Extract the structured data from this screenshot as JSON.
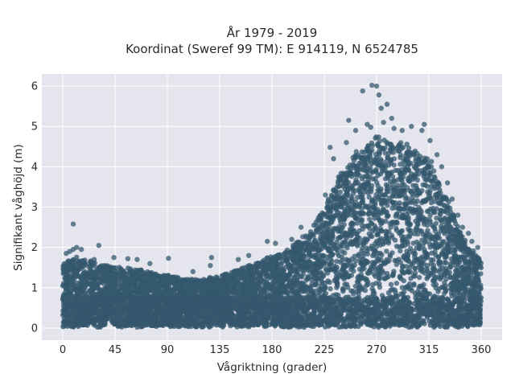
{
  "chart_data": {
    "type": "scatter",
    "title": "År 1979 - 2019",
    "subtitle": "Koordinat (Sweref 99 TM): E 914119, N 6524785",
    "xlabel": "Vågriktning (grader)",
    "ylabel": "Signifikant våghöjd (m)",
    "xlim": [
      -18,
      378
    ],
    "ylim": [
      -0.3,
      6.3
    ],
    "xticks": [
      0,
      45,
      90,
      135,
      180,
      225,
      270,
      315,
      360
    ],
    "yticks": [
      0,
      1,
      2,
      3,
      4,
      5,
      6
    ],
    "grid": true,
    "marker_color": "#34586e",
    "background": "#e5e6ed",
    "envelope": {
      "direction_deg": [
        0,
        10,
        20,
        30,
        45,
        60,
        75,
        90,
        105,
        120,
        135,
        150,
        165,
        180,
        195,
        210,
        225,
        240,
        255,
        265,
        270,
        280,
        295,
        305,
        315,
        325,
        335,
        345,
        360
      ],
      "max_height_m": [
        1.6,
        1.75,
        1.7,
        1.6,
        1.55,
        1.45,
        1.4,
        1.3,
        1.2,
        1.2,
        1.3,
        1.45,
        1.6,
        1.75,
        2.0,
        2.3,
        3.0,
        3.9,
        4.4,
        4.7,
        4.8,
        4.6,
        4.5,
        4.4,
        4.2,
        3.6,
        2.9,
        2.2,
        1.7
      ]
    },
    "outliers": [
      {
        "x": 3,
        "y": 1.85
      },
      {
        "x": 6,
        "y": 1.9
      },
      {
        "x": 9,
        "y": 1.95
      },
      {
        "x": 9,
        "y": 2.58
      },
      {
        "x": 12,
        "y": 2.0
      },
      {
        "x": 16,
        "y": 1.95
      },
      {
        "x": 27,
        "y": 1.7
      },
      {
        "x": 31,
        "y": 2.05
      },
      {
        "x": 44,
        "y": 1.75
      },
      {
        "x": 56,
        "y": 1.72
      },
      {
        "x": 64,
        "y": 1.7
      },
      {
        "x": 75,
        "y": 1.6
      },
      {
        "x": 91,
        "y": 1.73
      },
      {
        "x": 112,
        "y": 1.4
      },
      {
        "x": 127,
        "y": 1.55
      },
      {
        "x": 128,
        "y": 1.75
      },
      {
        "x": 151,
        "y": 1.7
      },
      {
        "x": 160,
        "y": 1.8
      },
      {
        "x": 176,
        "y": 2.15
      },
      {
        "x": 183,
        "y": 2.1
      },
      {
        "x": 197,
        "y": 2.2
      },
      {
        "x": 205,
        "y": 2.5
      },
      {
        "x": 216,
        "y": 2.55
      },
      {
        "x": 226,
        "y": 3.3
      },
      {
        "x": 230,
        "y": 4.48
      },
      {
        "x": 233,
        "y": 4.2
      },
      {
        "x": 244,
        "y": 4.6
      },
      {
        "x": 246,
        "y": 5.15
      },
      {
        "x": 252,
        "y": 4.9
      },
      {
        "x": 258,
        "y": 5.88
      },
      {
        "x": 262,
        "y": 5.05
      },
      {
        "x": 265,
        "y": 4.98
      },
      {
        "x": 266,
        "y": 6.02
      },
      {
        "x": 270,
        "y": 6.0
      },
      {
        "x": 272,
        "y": 5.78
      },
      {
        "x": 274,
        "y": 5.45
      },
      {
        "x": 276,
        "y": 5.1
      },
      {
        "x": 279,
        "y": 5.55
      },
      {
        "x": 283,
        "y": 5.2
      },
      {
        "x": 285,
        "y": 4.95
      },
      {
        "x": 292,
        "y": 4.9
      },
      {
        "x": 300,
        "y": 5.0
      },
      {
        "x": 309,
        "y": 4.9
      },
      {
        "x": 311,
        "y": 5.05
      },
      {
        "x": 316,
        "y": 4.65
      },
      {
        "x": 322,
        "y": 4.3
      },
      {
        "x": 326,
        "y": 4.0
      },
      {
        "x": 331,
        "y": 3.6
      },
      {
        "x": 335,
        "y": 3.2
      },
      {
        "x": 340,
        "y": 2.8
      },
      {
        "x": 344,
        "y": 2.5
      },
      {
        "x": 349,
        "y": 2.35
      },
      {
        "x": 352,
        "y": 2.15
      },
      {
        "x": 357,
        "y": 2.0
      }
    ]
  }
}
